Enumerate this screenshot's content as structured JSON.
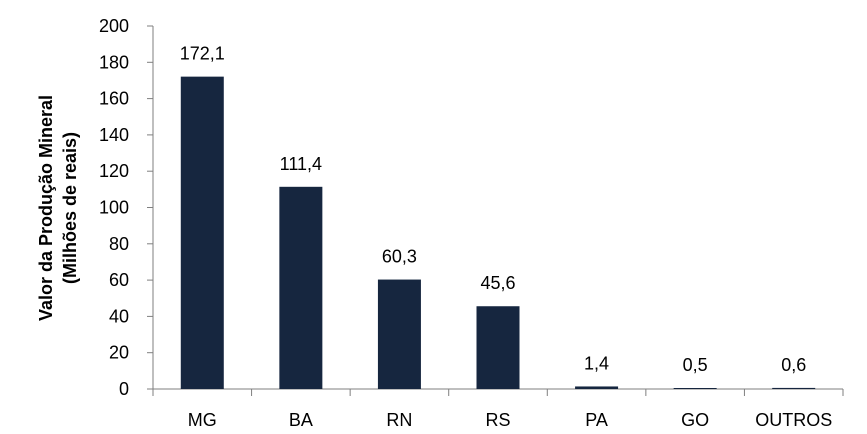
{
  "chart_data": {
    "type": "bar",
    "title": "",
    "xlabel": "",
    "ylabel_lines": [
      "Valor da Produção Mineral",
      "(Milhões de reais)"
    ],
    "categories": [
      "MG",
      "BA",
      "RN",
      "RS",
      "PA",
      "GO",
      "OUTROS"
    ],
    "values": [
      172.1,
      111.4,
      60.3,
      45.6,
      1.4,
      0.5,
      0.6
    ],
    "value_labels": [
      "172,1",
      "111,4",
      "60,3",
      "45,6",
      "1,4",
      "0,5",
      "0,6"
    ],
    "yticks": [
      "0",
      "20",
      "40",
      "60",
      "80",
      "100",
      "120",
      "140",
      "160",
      "180",
      "200"
    ],
    "ylim": [
      0,
      200
    ],
    "grid": false,
    "legend": "none",
    "bar_color": "#16263f"
  }
}
